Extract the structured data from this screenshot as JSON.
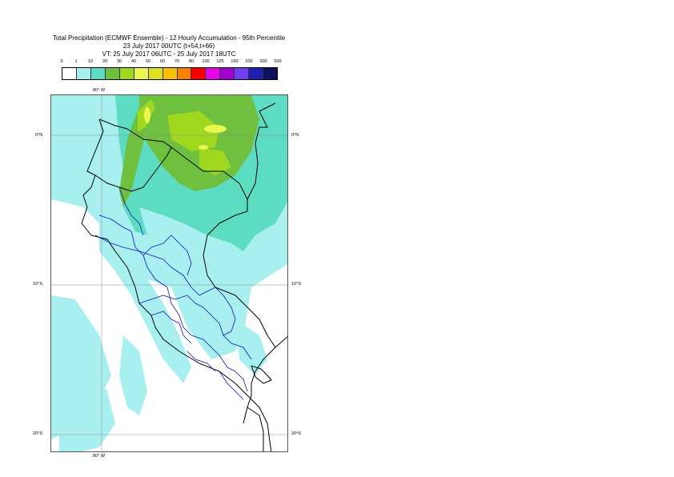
{
  "title": {
    "line1": "Total Precipitation (ECMWF Ensemble) - 12 Hourly Accumulation - 95th Percentile",
    "line2": "23 July 2017 00UTC (t+54,t+66)",
    "line3": "VT: 25 July 2017 06UTC - 25 July 2017 18UTC"
  },
  "legend": {
    "labels": [
      "0",
      "1",
      "10",
      "20",
      "30",
      "40",
      "50",
      "60",
      "70",
      "80",
      "100",
      "125",
      "150",
      "200",
      "300",
      "500"
    ],
    "colors": [
      "#ffffff",
      "#a8f0f0",
      "#5cdcc0",
      "#70c040",
      "#a0d820",
      "#e8f850",
      "#e0e020",
      "#f8c000",
      "#f88000",
      "#f80000",
      "#e800e8",
      "#a000d0",
      "#7040f0",
      "#2020b0",
      "#101060"
    ]
  },
  "axes": {
    "lon_top": "80° W",
    "lon_bottom": "80° W",
    "lat_left": [
      "0°N",
      "10°S",
      "20°S"
    ],
    "lat_right": [
      "0°N",
      "10°S",
      "20°S"
    ]
  }
}
